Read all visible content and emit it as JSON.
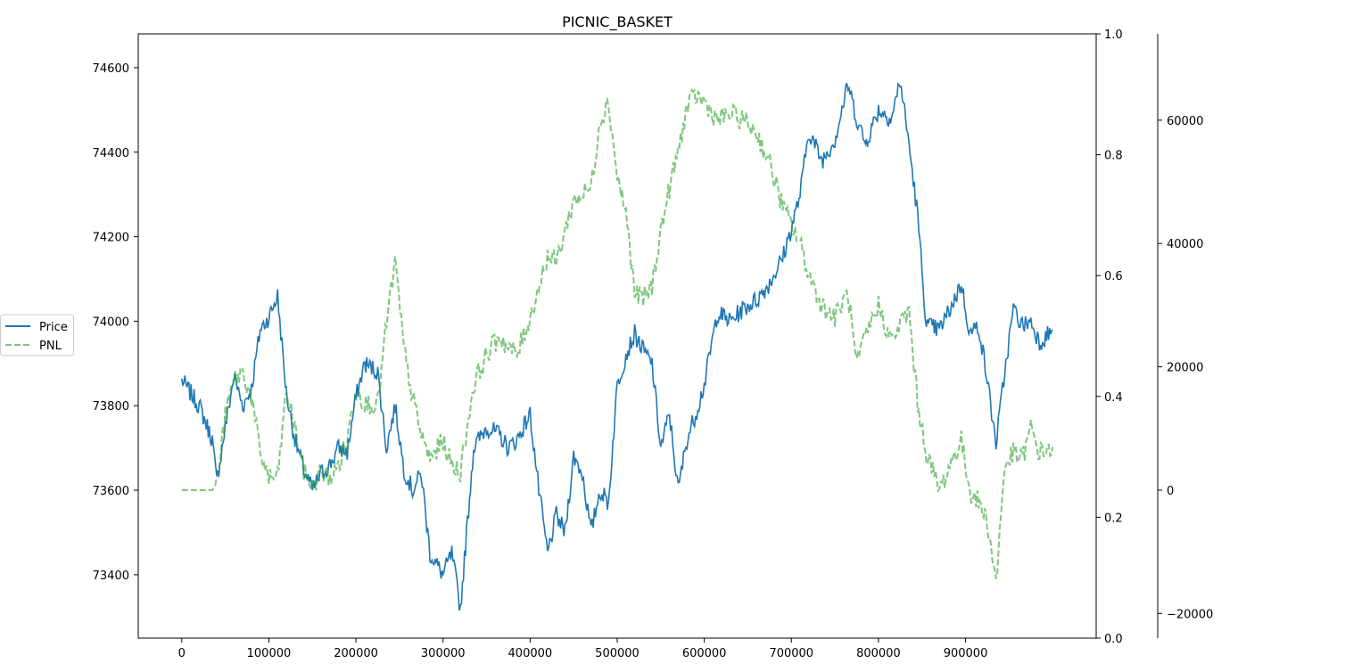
{
  "chart_data": {
    "type": "line",
    "title": "PICNIC_BASKET",
    "xlabel": "",
    "ylabel": "",
    "xlim": [
      -50000,
      1050000
    ],
    "x_ticks": [
      0,
      100000,
      200000,
      300000,
      400000,
      500000,
      600000,
      700000,
      800000,
      900000
    ],
    "x_tick_labels": [
      "0",
      "100000",
      "200000",
      "300000",
      "400000",
      "500000",
      "600000",
      "700000",
      "800000",
      "900000"
    ],
    "axes": {
      "left": {
        "ylim": [
          73250,
          74680
        ],
        "ticks": [
          73400,
          73600,
          73800,
          74000,
          74200,
          74400,
          74600
        ],
        "tick_labels": [
          "73400",
          "73600",
          "73800",
          "74000",
          "74200",
          "74400",
          "74600"
        ]
      },
      "inner_right": {
        "ylim": [
          0.0,
          1.0
        ],
        "ticks": [
          0.0,
          0.2,
          0.4,
          0.6,
          0.8,
          1.0
        ],
        "tick_labels": [
          "0.0",
          "0.2",
          "0.4",
          "0.6",
          "0.8",
          "1.0"
        ]
      },
      "outer_right": {
        "ylim": [
          -24000,
          74000
        ],
        "ticks": [
          -20000,
          0,
          20000,
          40000,
          60000
        ],
        "tick_labels": [
          "−20000",
          "0",
          "20000",
          "40000",
          "60000"
        ]
      }
    },
    "legend": {
      "placement": "left-outside",
      "entries": [
        {
          "label": "Price",
          "color": "#1f77b4",
          "style": "solid"
        },
        {
          "label": "PNL",
          "color": "#2ca02c",
          "style": "dashed"
        }
      ]
    },
    "series": [
      {
        "name": "Price",
        "axis": "left",
        "color": "#1f77b4",
        "style": "solid",
        "x": [
          0,
          20000,
          35000,
          40000,
          50000,
          60000,
          70000,
          80000,
          90000,
          100000,
          110000,
          120000,
          130000,
          140000,
          150000,
          160000,
          170000,
          180000,
          190000,
          200000,
          210000,
          225000,
          235000,
          245000,
          255000,
          265000,
          275000,
          285000,
          300000,
          310000,
          320000,
          335000,
          350000,
          365000,
          375000,
          385000,
          400000,
          410000,
          420000,
          430000,
          440000,
          450000,
          460000,
          470000,
          480000,
          490000,
          500000,
          510000,
          520000,
          530000,
          540000,
          550000,
          560000,
          570000,
          580000,
          590000,
          600000,
          615000,
          630000,
          645000,
          660000,
          675000,
          690000,
          700000,
          710000,
          720000,
          735000,
          750000,
          765000,
          775000,
          785000,
          800000,
          815000,
          825000,
          835000,
          845000,
          855000,
          870000,
          885000,
          895000,
          905000,
          915000,
          925000,
          935000,
          945000,
          955000,
          965000,
          975000,
          985000,
          1000000
        ],
        "values": [
          73860,
          73800,
          73720,
          73620,
          73750,
          73870,
          73800,
          73840,
          73980,
          74010,
          74060,
          73830,
          73720,
          73650,
          73600,
          73640,
          73660,
          73700,
          73690,
          73820,
          73900,
          73880,
          73700,
          73800,
          73650,
          73600,
          73640,
          73450,
          73400,
          73450,
          73320,
          73700,
          73750,
          73730,
          73700,
          73720,
          73780,
          73600,
          73450,
          73540,
          73500,
          73680,
          73640,
          73500,
          73600,
          73570,
          73850,
          73920,
          73970,
          73930,
          73900,
          73700,
          73780,
          73600,
          73720,
          73780,
          73850,
          74020,
          74000,
          74030,
          74050,
          74090,
          74150,
          74220,
          74300,
          74450,
          74380,
          74430,
          74560,
          74480,
          74420,
          74500,
          74480,
          74570,
          74420,
          74250,
          73990,
          73980,
          74040,
          74090,
          73970,
          73990,
          73860,
          73710,
          73880,
          74030,
          73990,
          74000,
          73950,
          73980
        ]
      },
      {
        "name": "PNL",
        "axis": "outer_right",
        "color": "#2ca02c",
        "style": "dashed",
        "x": [
          0,
          20000,
          35000,
          40000,
          50000,
          60000,
          70000,
          80000,
          90000,
          100000,
          110000,
          120000,
          130000,
          140000,
          150000,
          160000,
          170000,
          180000,
          190000,
          200000,
          210000,
          225000,
          235000,
          245000,
          255000,
          265000,
          275000,
          285000,
          300000,
          310000,
          320000,
          335000,
          350000,
          365000,
          375000,
          385000,
          400000,
          410000,
          420000,
          430000,
          440000,
          450000,
          460000,
          470000,
          480000,
          490000,
          500000,
          510000,
          520000,
          530000,
          540000,
          550000,
          560000,
          570000,
          580000,
          590000,
          600000,
          615000,
          630000,
          645000,
          660000,
          675000,
          690000,
          700000,
          710000,
          720000,
          735000,
          750000,
          765000,
          775000,
          785000,
          800000,
          815000,
          825000,
          835000,
          845000,
          855000,
          870000,
          885000,
          895000,
          905000,
          915000,
          925000,
          935000,
          945000,
          955000,
          965000,
          975000,
          985000,
          1000000
        ],
        "values": [
          0,
          0,
          0,
          1000,
          12000,
          18000,
          19000,
          15000,
          6000,
          2000,
          2000,
          16000,
          10000,
          3000,
          500,
          3000,
          2000,
          4000,
          8000,
          17000,
          14000,
          14000,
          27000,
          37000,
          23000,
          15000,
          9000,
          5000,
          8000,
          4000,
          3000,
          17000,
          22000,
          25000,
          23000,
          22000,
          28000,
          33000,
          38000,
          37000,
          42000,
          47000,
          48000,
          49000,
          60000,
          63000,
          51000,
          45000,
          32000,
          31000,
          33000,
          42000,
          49000,
          55000,
          62000,
          64000,
          63000,
          60000,
          61000,
          60000,
          58000,
          53000,
          46000,
          43000,
          40000,
          35000,
          30000,
          28000,
          32000,
          20000,
          25000,
          30000,
          24000,
          27000,
          29000,
          14000,
          6000,
          0,
          5000,
          8000,
          0,
          -2000,
          -5000,
          -15000,
          4000,
          6000,
          5000,
          10000,
          6000,
          7000
        ]
      }
    ]
  }
}
